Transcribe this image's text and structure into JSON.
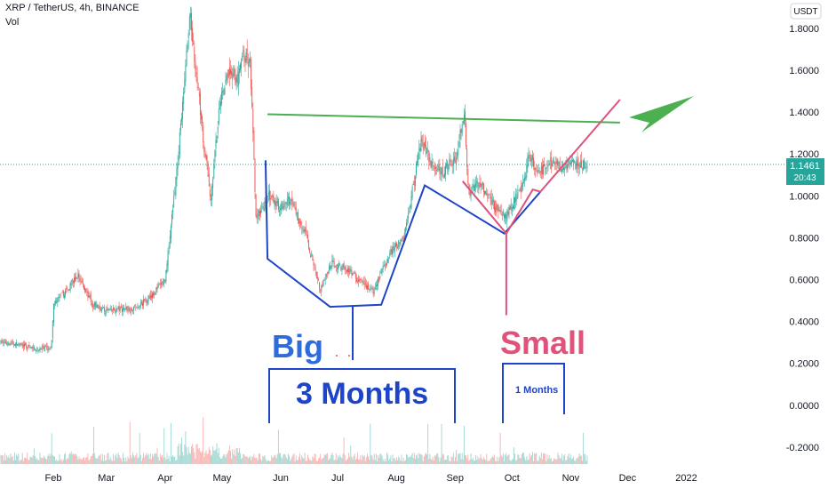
{
  "header": {
    "symbol_line": "XRP / TetherUS, 4h, BINANCE",
    "volume_label": "Vol"
  },
  "price_scale": {
    "currency": "USDT",
    "current_price": "1.1461",
    "countdown": "20:43"
  },
  "annotations": {
    "big_label": "Big",
    "big_duration": "3 Months",
    "small_label": "Small",
    "small_duration": "1 Months"
  },
  "colors": {
    "up": "#26a69a",
    "down": "#ef5350",
    "blue_pattern": "#1e44c8",
    "pink_pattern": "#e0527a",
    "green_line": "#4caf50",
    "price_tag": "#26a69a"
  },
  "chart_data": {
    "type": "candlestick",
    "title": "XRP / TetherUS, 4h, BINANCE",
    "xlabel": "",
    "ylabel": "",
    "x_ticks": [
      "Feb",
      "Mar",
      "Apr",
      "May",
      "Jun",
      "Jul",
      "Aug",
      "Sep",
      "Oct",
      "Nov",
      "Dec",
      "2022"
    ],
    "y_ticks": [
      1.8,
      1.6,
      1.4,
      1.2,
      1.0,
      0.8,
      0.6,
      0.4,
      0.2,
      0.0,
      -0.2
    ],
    "ylim": [
      -0.2,
      1.9
    ],
    "grid": false,
    "last_price": 1.1461,
    "price_path": [
      [
        "2021-01-08",
        0.3
      ],
      [
        "2021-01-22",
        0.27
      ],
      [
        "2021-01-31",
        0.27
      ],
      [
        "2021-02-01",
        0.48
      ],
      [
        "2021-02-08",
        0.55
      ],
      [
        "2021-02-14",
        0.62
      ],
      [
        "2021-02-22",
        0.48
      ],
      [
        "2021-03-01",
        0.45
      ],
      [
        "2021-03-10",
        0.46
      ],
      [
        "2021-03-18",
        0.47
      ],
      [
        "2021-03-25",
        0.53
      ],
      [
        "2021-04-01",
        0.6
      ],
      [
        "2021-04-06",
        1.02
      ],
      [
        "2021-04-10",
        1.4
      ],
      [
        "2021-04-14",
        1.88
      ],
      [
        "2021-04-17",
        1.62
      ],
      [
        "2021-04-22",
        1.2
      ],
      [
        "2021-04-25",
        0.98
      ],
      [
        "2021-04-30",
        1.45
      ],
      [
        "2021-05-05",
        1.6
      ],
      [
        "2021-05-09",
        1.55
      ],
      [
        "2021-05-12",
        1.68
      ],
      [
        "2021-05-16",
        1.62
      ],
      [
        "2021-05-19",
        0.88
      ],
      [
        "2021-05-25",
        1.0
      ],
      [
        "2021-05-31",
        0.95
      ],
      [
        "2021-06-06",
        0.98
      ],
      [
        "2021-06-14",
        0.82
      ],
      [
        "2021-06-22",
        0.55
      ],
      [
        "2021-06-28",
        0.68
      ],
      [
        "2021-07-06",
        0.65
      ],
      [
        "2021-07-14",
        0.58
      ],
      [
        "2021-07-20",
        0.54
      ],
      [
        "2021-07-28",
        0.72
      ],
      [
        "2021-08-05",
        0.8
      ],
      [
        "2021-08-10",
        1.05
      ],
      [
        "2021-08-14",
        1.28
      ],
      [
        "2021-08-20",
        1.14
      ],
      [
        "2021-08-26",
        1.12
      ],
      [
        "2021-09-01",
        1.18
      ],
      [
        "2021-09-06",
        1.38
      ],
      [
        "2021-09-08",
        1.02
      ],
      [
        "2021-09-14",
        1.06
      ],
      [
        "2021-09-21",
        0.96
      ],
      [
        "2021-09-28",
        0.9
      ],
      [
        "2021-10-02",
        0.98
      ],
      [
        "2021-10-06",
        1.02
      ],
      [
        "2021-10-10",
        1.2
      ],
      [
        "2021-10-14",
        1.1
      ],
      [
        "2021-10-20",
        1.1461
      ]
    ],
    "annotations": {
      "green_horizontal_line": [
        [
          "2021-05-25",
          1.39
        ],
        [
          "2021-11-27",
          1.35
        ]
      ],
      "blue_pattern": [
        [
          "2021-05-24",
          1.17
        ],
        [
          "2021-05-25",
          0.7
        ],
        [
          "2021-06-27",
          0.47
        ],
        [
          "2021-07-24",
          0.48
        ],
        [
          "2021-08-16",
          1.05
        ],
        [
          "2021-09-07",
          0.93
        ],
        [
          "2021-09-27",
          0.82
        ],
        [
          "2021-10-16",
          1.02
        ]
      ],
      "pink_pattern": [
        [
          "2021-09-05",
          1.07
        ],
        [
          "2021-09-28",
          0.82
        ],
        [
          "2021-10-12",
          1.03
        ],
        [
          "2021-10-16",
          1.02
        ],
        [
          "2021-11-27",
          1.46
        ]
      ],
      "pink_vertical": [
        [
          "2021-09-28",
          0.82
        ],
        [
          "2021-09-28",
          0.43
        ]
      ]
    }
  }
}
